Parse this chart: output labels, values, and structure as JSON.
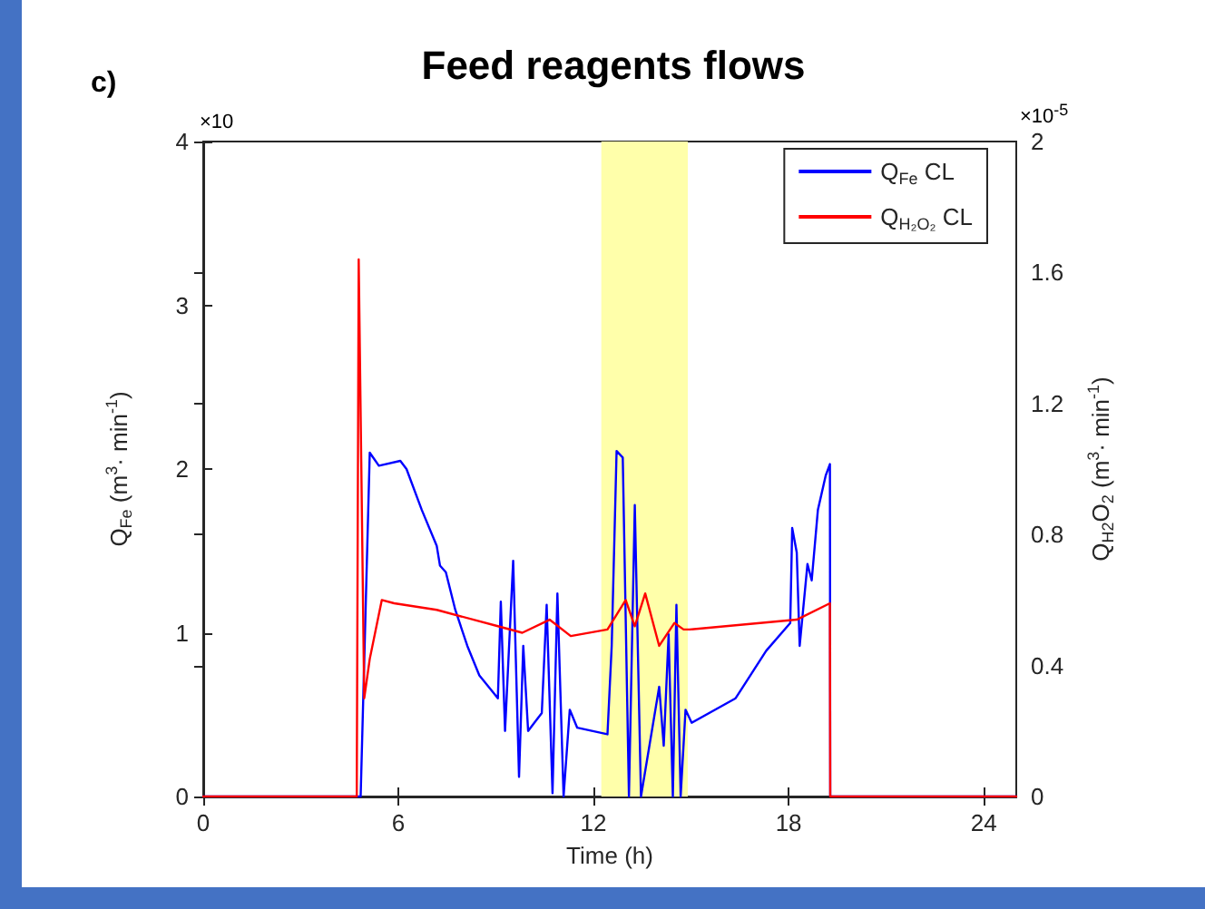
{
  "chart_data": {
    "type": "line",
    "title": "Feed reagents flows",
    "xlabel": "Time (h)",
    "ylabel": "Q$_{Fe}$ (m$^{3}$· min$^{-1}$)",
    "y2label": "Q$_{H2}$O$_{2}$ (m$^{3}$· min$^{-1}$)",
    "annotations": [
      "c)",
      "×10",
      "×10$^{-5}$"
    ],
    "xlim": [
      0,
      25
    ],
    "xticks": [
      0,
      6,
      12,
      18,
      24
    ],
    "ylim": [
      0,
      4
    ],
    "yticks": [
      0,
      1,
      2,
      3,
      4
    ],
    "y2lim": [
      0,
      2
    ],
    "y2ticks": [
      0,
      0.4,
      0.8,
      1.2,
      1.6,
      2
    ],
    "grid": false,
    "legend": "top right",
    "marker": "none",
    "line_style": "solid",
    "bands": [
      {
        "axis": "x",
        "from": 12.24,
        "to": 14.9,
        "color": "#ffffaa"
      }
    ],
    "series": [
      {
        "name": "Q$_{Fe}$ CL",
        "color": "#0000ff",
        "x": [
          0,
          4.84,
          5.12,
          5.4,
          6.06,
          6.25,
          6.72,
          7.18,
          7.28,
          7.46,
          7.75,
          8.12,
          8.49,
          9.06,
          9.15,
          9.28,
          9.53,
          9.71,
          9.84,
          9.99,
          10.18,
          10.41,
          10.56,
          10.74,
          10.89,
          11.08,
          11.27,
          11.5,
          12.43,
          12.56,
          12.71,
          12.9,
          13.09,
          13.27,
          13.46,
          14.02,
          14.16,
          14.31,
          14.44,
          14.55,
          14.68,
          14.83,
          15.02,
          16.37,
          17.31,
          18.05,
          18.11,
          18.25,
          18.34,
          18.58,
          18.71,
          18.9,
          19.14,
          19.27,
          19.28,
          25
        ],
        "values": [
          0,
          0,
          2.1,
          2.02,
          2.05,
          2,
          1.75,
          1.53,
          1.41,
          1.37,
          1.14,
          0.92,
          0.74,
          0.6,
          1.19,
          0.4,
          1.44,
          0.12,
          0.92,
          0.4,
          0.45,
          0.51,
          1.17,
          0.02,
          1.24,
          0,
          0.53,
          0.42,
          0.38,
          0.92,
          2.11,
          2.07,
          0,
          1.78,
          0,
          0.67,
          0.31,
          0.99,
          0,
          1.17,
          0,
          0.53,
          0.45,
          0.6,
          0.89,
          1.06,
          1.64,
          1.49,
          0.92,
          1.42,
          1.32,
          1.75,
          1.96,
          2.03,
          0,
          0
        ]
      },
      {
        "name": "Q$_{H₂O₂}$ CL",
        "color": "#ff0000",
        "axis": "y2",
        "x": [
          0,
          4.72,
          4.78,
          4.95,
          5.12,
          5.49,
          5.87,
          7.18,
          9.06,
          9.81,
          10.65,
          11.3,
          12.43,
          12.99,
          13.27,
          13.59,
          14.02,
          14.49,
          14.77,
          14.96,
          18.25,
          19.27,
          19.28,
          25
        ],
        "values": [
          0,
          0,
          1.64,
          0.3,
          0.42,
          0.6,
          0.59,
          0.57,
          0.52,
          0.5,
          0.54,
          0.49,
          0.51,
          0.6,
          0.52,
          0.62,
          0.46,
          0.53,
          0.51,
          0.51,
          0.54,
          0.59,
          0,
          0
        ]
      }
    ]
  }
}
